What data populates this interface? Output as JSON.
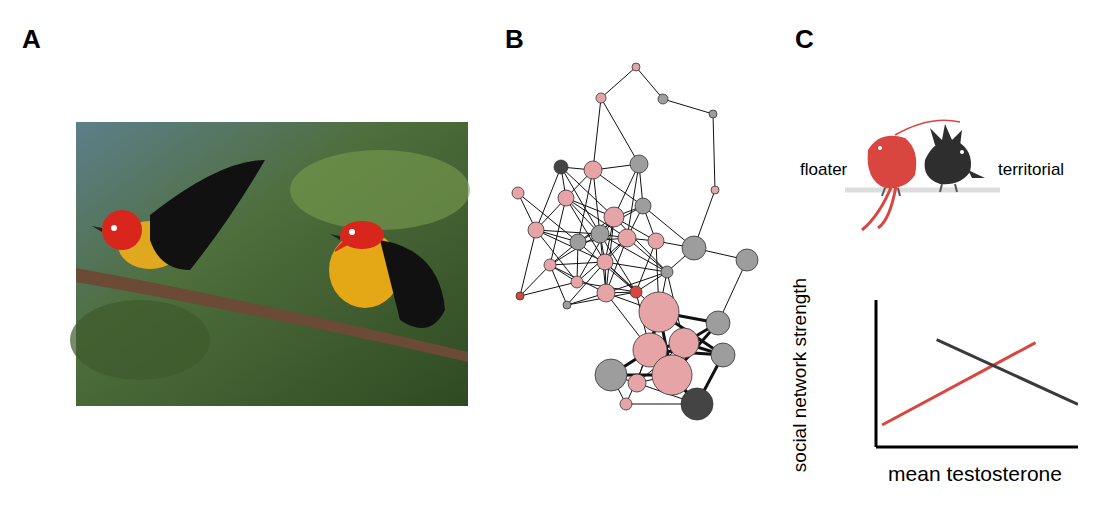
{
  "panel_labels": [
    "A",
    "B",
    "C"
  ],
  "chart_data": {
    "type": "line",
    "x_label": "mean testosterone",
    "y_label": "social network strength",
    "xlim": [
      0,
      10
    ],
    "ylim": [
      0,
      10
    ],
    "tick_labels": false,
    "series": [
      {
        "name": "floater",
        "color": "#d9453f",
        "x": [
          0.3,
          7.9
        ],
        "values": [
          1.5,
          7.1
        ]
      },
      {
        "name": "territorial",
        "color": "#3a3a3a",
        "x": [
          3.0,
          10
        ],
        "values": [
          7.3,
          2.9
        ]
      }
    ]
  }
}
